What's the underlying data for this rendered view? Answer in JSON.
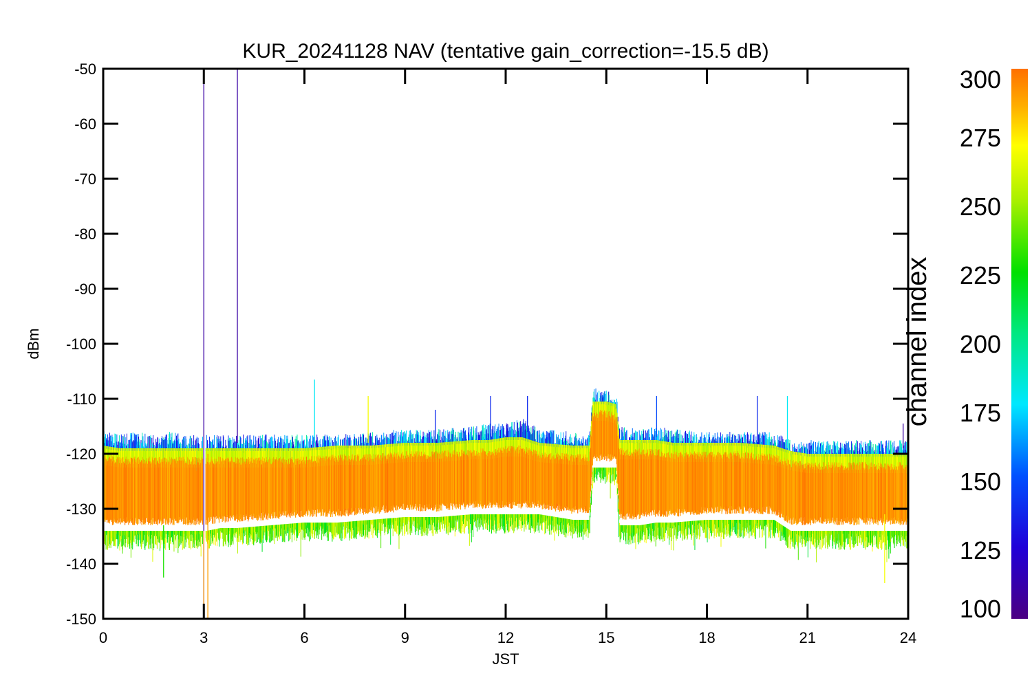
{
  "chart_data": {
    "type": "line",
    "title": "KUR_20241128 NAV (tentative gain_correction=-15.5 dB)",
    "xlabel": "JST",
    "ylabel": "dBm",
    "xlim": [
      0,
      24
    ],
    "ylim": [
      -150,
      -50
    ],
    "x_ticks": [
      "0",
      "3",
      "6",
      "9",
      "12",
      "15",
      "18",
      "21",
      "24"
    ],
    "y_ticks": [
      "-50",
      "-60",
      "-70",
      "-80",
      "-90",
      "-100",
      "-110",
      "-120",
      "-130",
      "-140",
      "-150"
    ],
    "grid": false,
    "colorbar": {
      "label": "channel index",
      "range": [
        100,
        300
      ],
      "ticks": [
        "300",
        "275",
        "250",
        "225",
        "200",
        "175",
        "150",
        "125",
        "100"
      ],
      "colormap": "rainbow"
    },
    "series": [
      {
        "x": [
          0,
          0.5,
          1,
          1.5,
          2,
          2.5,
          2.95,
          3.1,
          3.5,
          4,
          5,
          6,
          7,
          8,
          9,
          10,
          11,
          11.5,
          12,
          12.5,
          13,
          14,
          14.5,
          14.6,
          15,
          15.3,
          15.4,
          16,
          16.5,
          17,
          18,
          19,
          20,
          20.5,
          21,
          22,
          23,
          24
        ],
        "upper": [
          -117,
          -118,
          -117.5,
          -118,
          -117.5,
          -118,
          -118,
          -118,
          -118,
          -118,
          -118,
          -118,
          -118,
          -117.5,
          -117,
          -117,
          -116.5,
          -116,
          -116,
          -115,
          -117,
          -117.5,
          -118,
          -109.5,
          -110,
          -110.5,
          -116.5,
          -117,
          -116.5,
          -117,
          -117.5,
          -117.5,
          -117.5,
          -119,
          -119,
          -119,
          -119,
          -119
        ],
        "lower": [
          -136,
          -136,
          -136,
          -136,
          -136,
          -136,
          -136,
          -136,
          -135.5,
          -135.5,
          -135,
          -134.5,
          -134.5,
          -134,
          -133.5,
          -133.5,
          -133,
          -133,
          -133,
          -133,
          -133,
          -134,
          -134,
          -124,
          -124,
          -124,
          -135,
          -135,
          -134.5,
          -134.5,
          -134,
          -134,
          -134,
          -136,
          -136,
          -136,
          -136,
          -136
        ],
        "core_upper": [
          -119,
          -119.5,
          -119.5,
          -119.5,
          -119.5,
          -119.5,
          -119.5,
          -119.5,
          -119.5,
          -119.5,
          -119.5,
          -119.5,
          -119,
          -119,
          -118.5,
          -118.5,
          -118,
          -118,
          -117.5,
          -117.5,
          -118.5,
          -119,
          -119,
          -111,
          -111,
          -111.5,
          -118,
          -118,
          -118,
          -118.5,
          -118.5,
          -118.5,
          -119,
          -120,
          -120.5,
          -120.5,
          -120.5,
          -120.5
        ],
        "core_lower": [
          -134,
          -134,
          -134,
          -134,
          -134,
          -134,
          -134,
          -134,
          -133.5,
          -133.5,
          -133,
          -132.5,
          -132.5,
          -132,
          -131.5,
          -131.5,
          -131,
          -131,
          -131,
          -131,
          -131,
          -132,
          -132,
          -122.5,
          -122.5,
          -122.5,
          -133,
          -133,
          -132.5,
          -132.5,
          -132,
          -132,
          -132,
          -134,
          -134,
          -134,
          -134,
          -134
        ],
        "gap": [
          2.97,
          3.05
        ]
      }
    ],
    "spikes": [
      {
        "x": 3.0,
        "y_top": -51,
        "y_bottom": -150,
        "channel": 110
      },
      {
        "x": 4.0,
        "y_top": -50,
        "y_bottom": -118,
        "channel": 110
      },
      {
        "x": 3.0,
        "y_top": -134,
        "y_bottom": -150,
        "channel": 290
      },
      {
        "x": 3.12,
        "y_top": -120,
        "y_bottom": -150,
        "channel": 290
      },
      {
        "x": 6.3,
        "y_top": -106.5,
        "y_bottom": -118,
        "channel": 180
      },
      {
        "x": 7.9,
        "y_top": -109.5,
        "y_bottom": -118,
        "channel": 270
      },
      {
        "x": 9.9,
        "y_top": -112,
        "y_bottom": -118,
        "channel": 140
      },
      {
        "x": 11.55,
        "y_top": -109.5,
        "y_bottom": -117,
        "channel": 140
      },
      {
        "x": 12.65,
        "y_top": -109.5,
        "y_bottom": -116,
        "channel": 140
      },
      {
        "x": 16.5,
        "y_top": -109.5,
        "y_bottom": -117,
        "channel": 150
      },
      {
        "x": 19.5,
        "y_top": -109.5,
        "y_bottom": -118,
        "channel": 140
      },
      {
        "x": 20.4,
        "y_top": -109.5,
        "y_bottom": -119,
        "channel": 180
      },
      {
        "x": 23.85,
        "y_top": -114.5,
        "y_bottom": -119,
        "channel": 110
      },
      {
        "x": 23.3,
        "y_top": -131,
        "y_bottom": -143.5,
        "channel": 270
      },
      {
        "x": 1.8,
        "y_top": -133,
        "y_bottom": -142.5,
        "channel": 230
      }
    ]
  }
}
